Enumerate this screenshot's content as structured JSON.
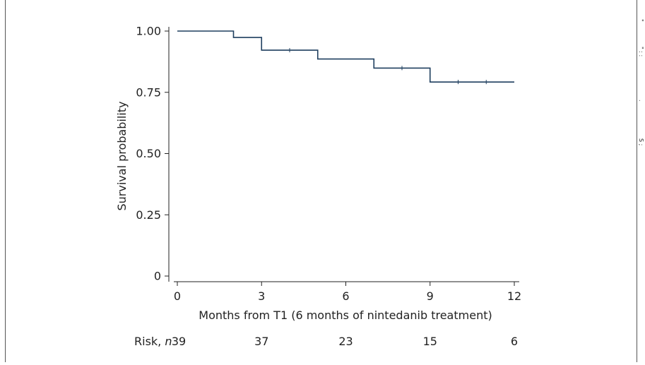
{
  "chart_data": {
    "type": "line",
    "title": "",
    "xlabel": "Months from T1 (6 months of nintedanib treatment)",
    "ylabel": "Survival probability",
    "xlim": [
      0,
      12
    ],
    "ylim": [
      0,
      1
    ],
    "x_ticks": [
      0,
      3,
      6,
      9,
      12
    ],
    "x_tick_labels": [
      "0",
      "3",
      "6",
      "9",
      "12"
    ],
    "y_ticks": [
      0,
      0.25,
      0.5,
      0.75,
      1.0
    ],
    "y_tick_labels": [
      "0",
      "0.25",
      "0.50",
      "0.75",
      "1.00"
    ],
    "grid": false,
    "series": [
      {
        "style": "step",
        "color": "#1f3f5f",
        "x": [
          0,
          2,
          3,
          5,
          7,
          9,
          12
        ],
        "y": [
          1.0,
          0.974,
          0.922,
          0.886,
          0.849,
          0.792,
          0.792
        ]
      }
    ],
    "censor_marks": [
      {
        "x": 4,
        "y": 0.922
      },
      {
        "x": 8,
        "y": 0.849
      },
      {
        "x": 10,
        "y": 0.792
      },
      {
        "x": 11,
        "y": 0.792
      }
    ],
    "risk_table": {
      "label": "Risk,",
      "label_italic": "n",
      "x": [
        0,
        3,
        6,
        9,
        12
      ],
      "values": [
        "39",
        "37",
        "23",
        "15",
        "6"
      ]
    },
    "side_marks": [
      "\"",
      "\" : :",
      ".",
      "S ;"
    ]
  }
}
